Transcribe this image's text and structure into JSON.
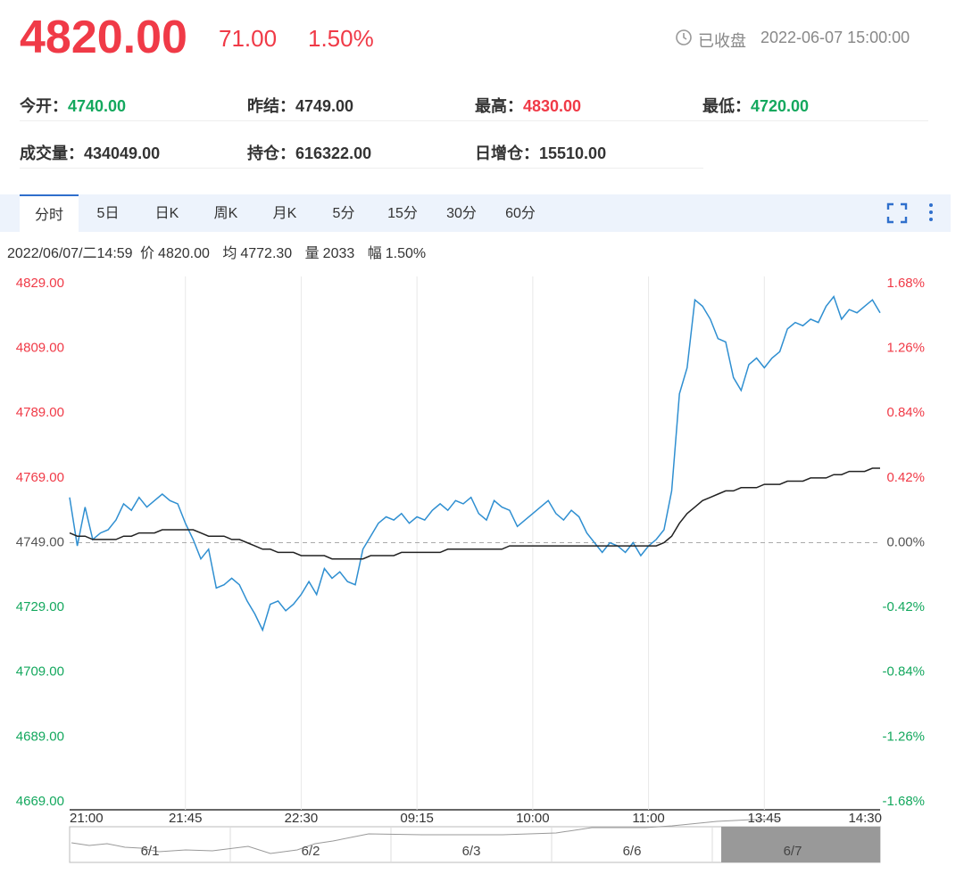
{
  "header": {
    "price": "4820.00",
    "change": "71.00",
    "change_pct": "1.50%",
    "status": "已收盘",
    "time": "2022-06-07 15:00:00"
  },
  "stats": [
    {
      "label": "今开：",
      "value": "4740.00"
    },
    {
      "label": "昨结：",
      "value": "4749.00"
    },
    {
      "label": "最高：",
      "value": "4830.00"
    },
    {
      "label": "最低：",
      "value": "4720.00"
    },
    {
      "label": "成交量：",
      "value": "434049.00"
    },
    {
      "label": "持仓：",
      "value": "616322.00"
    },
    {
      "label": "日增仓：",
      "value": "15510.00"
    }
  ],
  "tabs": [
    "分时",
    "5日",
    "日K",
    "周K",
    "月K",
    "5分",
    "15分",
    "30分",
    "60分"
  ],
  "info": {
    "date": "2022/06/07/二14:59",
    "price_label": "价",
    "price": "4820.00",
    "avg_label": "均",
    "avg": "4772.30",
    "vol_label": "量",
    "vol": "2033",
    "amp_label": "幅",
    "amp": "1.50%"
  },
  "chart_data": {
    "type": "line",
    "xlim": [
      0,
      105
    ],
    "xticks": [
      {
        "value": 0,
        "label": "21:00"
      },
      {
        "value": 15,
        "label": "21:45"
      },
      {
        "value": 30,
        "label": "22:30"
      },
      {
        "value": 45,
        "label": "09:15"
      },
      {
        "value": 60,
        "label": "10:00"
      },
      {
        "value": 75,
        "label": "11:00"
      },
      {
        "value": 90,
        "label": "13:45"
      },
      {
        "value": 105,
        "label": "14:30"
      }
    ],
    "ylim": [
      4669,
      4829
    ],
    "yticks": [
      {
        "value": 4829,
        "label": "4829.00"
      },
      {
        "value": 4809,
        "label": "4809.00"
      },
      {
        "value": 4789,
        "label": "4789.00"
      },
      {
        "value": 4769,
        "label": "4769.00"
      },
      {
        "value": 4749,
        "label": "4749.00"
      },
      {
        "value": 4729,
        "label": "4729.00"
      },
      {
        "value": 4709,
        "label": "4709.00"
      },
      {
        "value": 4689,
        "label": "4689.00"
      },
      {
        "value": 4669,
        "label": "4669.00"
      }
    ],
    "y2lim": [
      -1.68,
      1.68
    ],
    "y2ticks": [
      {
        "value": 1.68,
        "label": "1.68%"
      },
      {
        "value": 1.26,
        "label": "1.26%"
      },
      {
        "value": 0.84,
        "label": "0.84%"
      },
      {
        "value": 0.42,
        "label": "0.42%"
      },
      {
        "value": 0,
        "label": "0.00%"
      },
      {
        "value": -0.42,
        "label": "-0.42%"
      },
      {
        "value": -0.84,
        "label": "-0.84%"
      },
      {
        "value": -1.26,
        "label": "-1.26%"
      },
      {
        "value": -1.68,
        "label": "-1.68%"
      }
    ],
    "reference_line": 4749,
    "up_color": "#f03a47",
    "down_color": "#14a85e",
    "flat_color": "#555555",
    "series": [
      {
        "name": "价",
        "color": "#2f8fd1",
        "values": [
          4763,
          4748,
          4760,
          4750,
          4752,
          4753,
          4756,
          4761,
          4759,
          4763,
          4760,
          4762,
          4764,
          4762,
          4761,
          4755,
          4750,
          4744,
          4747,
          4735,
          4736,
          4738,
          4736,
          4731,
          4727,
          4722,
          4730,
          4731,
          4728,
          4730,
          4733,
          4737,
          4733,
          4741,
          4738,
          4740,
          4737,
          4736,
          4747,
          4751,
          4755,
          4757,
          4756,
          4758,
          4755,
          4757,
          4756,
          4759,
          4761,
          4759,
          4762,
          4761,
          4763,
          4758,
          4756,
          4762,
          4760,
          4759,
          4754,
          4756,
          4758,
          4760,
          4762,
          4758,
          4756,
          4759,
          4757,
          4752,
          4749,
          4746,
          4749,
          4748,
          4746,
          4749,
          4745,
          4748,
          4750,
          4753,
          4765,
          4795,
          4803,
          4824,
          4822,
          4818,
          4812,
          4811,
          4800,
          4796,
          4804,
          4806,
          4803,
          4806,
          4808,
          4815,
          4817,
          4816,
          4818,
          4817,
          4822,
          4825,
          4818,
          4821,
          4820,
          4822,
          4824,
          4820
        ]
      },
      {
        "name": "均",
        "color": "#222222",
        "values": [
          4752,
          4751,
          4751,
          4750,
          4750,
          4750,
          4750,
          4751,
          4751,
          4752,
          4752,
          4752,
          4753,
          4753,
          4753,
          4753,
          4753,
          4752,
          4751,
          4751,
          4751,
          4750,
          4750,
          4749,
          4748,
          4747,
          4747,
          4746,
          4746,
          4746,
          4745,
          4745,
          4745,
          4745,
          4744,
          4744,
          4744,
          4744,
          4744,
          4745,
          4745,
          4745,
          4745,
          4746,
          4746,
          4746,
          4746,
          4746,
          4746,
          4747,
          4747,
          4747,
          4747,
          4747,
          4747,
          4747,
          4747,
          4748,
          4748,
          4748,
          4748,
          4748,
          4748,
          4748,
          4748,
          4748,
          4748,
          4748,
          4748,
          4748,
          4748,
          4748,
          4748,
          4748,
          4748,
          4748,
          4748,
          4749,
          4751,
          4755,
          4758,
          4760,
          4762,
          4763,
          4764,
          4765,
          4765,
          4766,
          4766,
          4766,
          4767,
          4767,
          4767,
          4768,
          4768,
          4768,
          4769,
          4769,
          4769,
          4770,
          4770,
          4771,
          4771,
          4771,
          4772,
          4772
        ]
      }
    ]
  },
  "navigator": [
    "6/1",
    "6/2",
    "6/3",
    "6/6",
    "6/7"
  ]
}
